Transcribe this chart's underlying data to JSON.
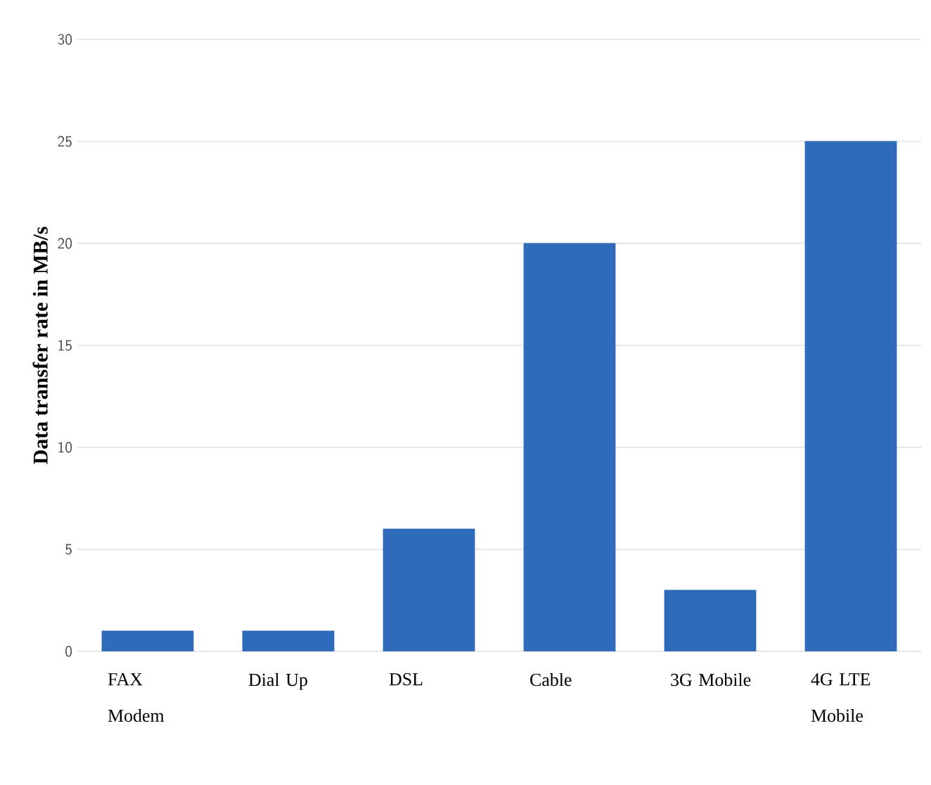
{
  "chart_data": {
    "type": "bar",
    "ylabel": "Data transfer rate in MB/s",
    "categories": [
      "FAX Modem",
      "Dial Up",
      "DSL",
      "Cable",
      "3G Mobile",
      "4G LTE Mobile"
    ],
    "values": [
      1,
      1,
      6,
      20,
      3,
      25
    ],
    "color": "#2e6bba",
    "ylim": [
      0,
      30
    ],
    "yticks": [
      0,
      5,
      10,
      15,
      20,
      25,
      30
    ],
    "grid": "y"
  }
}
